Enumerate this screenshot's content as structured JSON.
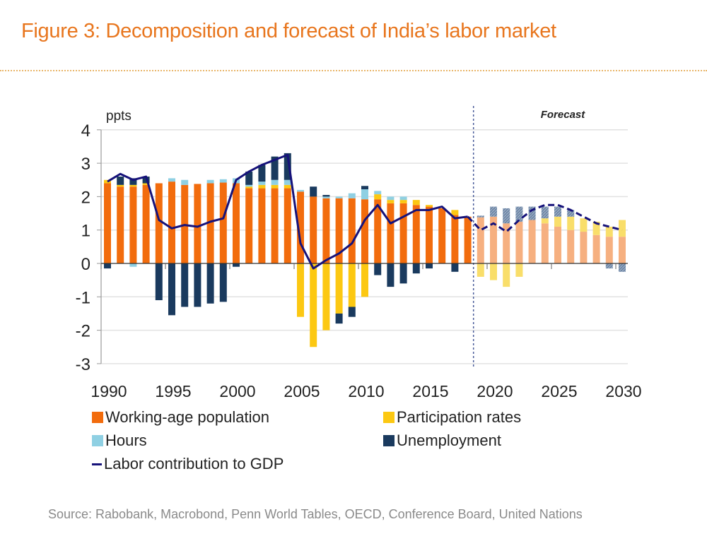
{
  "header": {
    "title": "Figure 3: Decomposition and forecast of India’s labor market"
  },
  "footer": {
    "source": "Source: Rabobank, Macrobond, Penn World Tables, OECD, Conference Board, United Nations"
  },
  "colors": {
    "working_age": "#f26c0d",
    "participation": "#fcc812",
    "hours": "#8fd0e3",
    "unemployment": "#1a3a5e",
    "line": "#16127a",
    "title": "#e8761e",
    "forecast_working_age": "#f6b080",
    "forecast_participation": "#f9de6a",
    "forecast_unemployment": "#6e86a6"
  },
  "chart_data": {
    "type": "bar",
    "stacked": true,
    "title": "Decomposition and forecast of India's labor market",
    "ylabel": "ppts",
    "xlabel": "",
    "ylim": [
      -3,
      4
    ],
    "yticks": [
      "4",
      "3",
      "2",
      "1",
      "0",
      "-1",
      "-2",
      "-3"
    ],
    "ytick_values": [
      4,
      3,
      2,
      1,
      0,
      -1,
      -2,
      -3
    ],
    "xticks": [
      "1990",
      "1995",
      "2000",
      "2005",
      "2010",
      "2015",
      "2020",
      "2025",
      "2030"
    ],
    "xtick_values": [
      1990,
      1995,
      2000,
      2005,
      2010,
      2015,
      2020,
      2025,
      2030
    ],
    "grid": true,
    "forecast_start": 2018.5,
    "forecast_label": "Forecast",
    "legend_position": "bottom",
    "legend": [
      {
        "name": "Working-age population",
        "kind": "bar",
        "color": "#f26c0d"
      },
      {
        "name": "Participation rates",
        "kind": "bar",
        "color": "#fcc812"
      },
      {
        "name": "Hours",
        "kind": "bar",
        "color": "#8fd0e3"
      },
      {
        "name": "Unemployment",
        "kind": "bar",
        "color": "#1a3a5e"
      },
      {
        "name": "Labor contribution to GDP",
        "kind": "line",
        "color": "#16127a"
      }
    ],
    "years": [
      1990,
      1991,
      1992,
      1993,
      1994,
      1995,
      1996,
      1997,
      1998,
      1999,
      2000,
      2001,
      2002,
      2003,
      2004,
      2005,
      2006,
      2007,
      2008,
      2009,
      2010,
      2011,
      2012,
      2013,
      2014,
      2015,
      2016,
      2017,
      2018,
      2019,
      2020,
      2021,
      2022,
      2023,
      2024,
      2025,
      2026,
      2027,
      2028,
      2029,
      2030
    ],
    "series": [
      {
        "name": "Working-age population",
        "values": [
          2.4,
          2.3,
          2.3,
          2.35,
          2.4,
          2.45,
          2.35,
          2.38,
          2.4,
          2.42,
          2.4,
          2.25,
          2.25,
          2.25,
          2.25,
          2.15,
          2.0,
          1.95,
          1.95,
          1.95,
          1.92,
          1.92,
          1.8,
          1.8,
          1.75,
          1.7,
          1.65,
          1.45,
          1.4,
          1.38,
          1.4,
          1.2,
          1.25,
          1.3,
          1.2,
          1.1,
          1.0,
          0.95,
          0.85,
          0.8,
          0.8
        ]
      },
      {
        "name": "Participation rates",
        "values": [
          0.1,
          0.05,
          0.05,
          0.05,
          0.0,
          0.0,
          0.0,
          0.0,
          0.0,
          0.0,
          0.0,
          0.05,
          0.1,
          0.1,
          0.1,
          -1.6,
          -2.5,
          -2.0,
          -1.5,
          -1.3,
          -1.0,
          0.15,
          0.1,
          0.1,
          0.15,
          0.05,
          0.0,
          0.15,
          0.0,
          -0.4,
          -0.5,
          -0.7,
          -0.4,
          0.0,
          0.15,
          0.3,
          0.4,
          0.4,
          0.4,
          0.3,
          0.5
        ]
      },
      {
        "name": "Hours",
        "values": [
          0.0,
          0.0,
          -0.1,
          0.0,
          0.0,
          0.1,
          0.15,
          0.0,
          0.1,
          0.1,
          0.15,
          0.05,
          0.1,
          0.15,
          0.15,
          0.05,
          0.0,
          0.05,
          0.05,
          0.15,
          0.3,
          0.1,
          0.1,
          0.1,
          0.0,
          0.0,
          0.0,
          0.0,
          0.0,
          0.0,
          0.0,
          0.0,
          0.0,
          0.0,
          0.0,
          0.0,
          0.0,
          0.0,
          0.0,
          0.0,
          0.0
        ]
      },
      {
        "name": "Unemployment",
        "values": [
          -0.15,
          0.25,
          0.2,
          0.2,
          -1.1,
          -1.55,
          -1.3,
          -1.3,
          -1.2,
          -1.15,
          -0.1,
          0.4,
          0.5,
          0.7,
          0.8,
          0.0,
          0.3,
          0.05,
          -0.3,
          -0.3,
          0.1,
          -0.35,
          -0.7,
          -0.6,
          -0.3,
          -0.15,
          0.0,
          -0.25,
          0.0,
          0.05,
          0.3,
          0.45,
          0.45,
          0.4,
          0.35,
          0.3,
          0.2,
          0.0,
          0.0,
          -0.15,
          -0.25
        ]
      },
      {
        "name": "Labor contribution to GDP",
        "kind": "line",
        "values": [
          2.45,
          2.68,
          2.5,
          2.6,
          1.3,
          1.05,
          1.15,
          1.1,
          1.25,
          1.35,
          2.5,
          2.75,
          2.95,
          3.1,
          3.25,
          0.6,
          -0.15,
          0.1,
          0.3,
          0.6,
          1.3,
          1.75,
          1.2,
          1.4,
          1.6,
          1.6,
          1.7,
          1.35,
          1.4,
          1.0,
          1.2,
          0.95,
          1.3,
          1.6,
          1.75,
          1.75,
          1.6,
          1.4,
          1.2,
          1.1,
          1.0
        ]
      }
    ]
  }
}
